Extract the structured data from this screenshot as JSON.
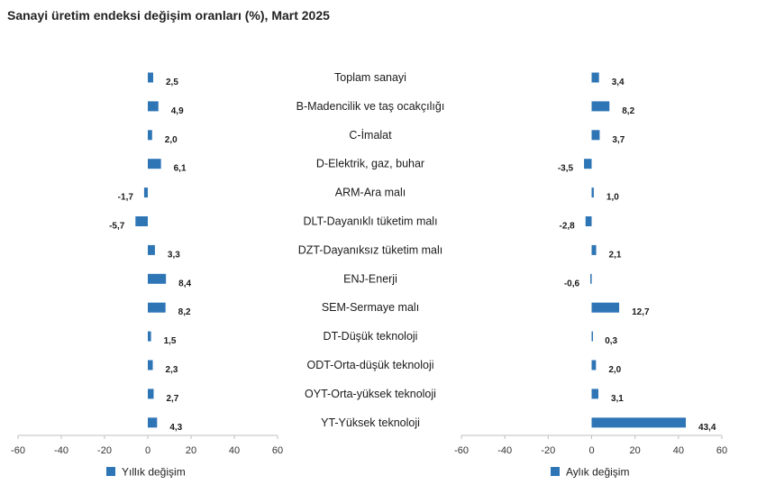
{
  "title": "Sanayi üretim endeksi değişim oranları (%), Mart 2025",
  "colors": {
    "bar": "#2e75b6",
    "axis": "#bfbfbf"
  },
  "chart_data": [
    {
      "type": "bar",
      "orientation": "horizontal",
      "categories": [
        "Toplam sanayi",
        "B-Madencilik ve taş ocakçılığı",
        "C-İmalat",
        "D-Elektrik, gaz, buhar",
        "ARM-Ara malı",
        "DLT-Dayanıklı tüketim malı",
        "DZT-Dayanıksız tüketim malı",
        "ENJ-Enerji",
        "SEM-Sermaye malı",
        "DT-Düşük teknoloji",
        "ODT-Orta-düşük teknoloji",
        "OYT-Orta-yüksek teknoloji",
        "YT-Yüksek teknoloji"
      ],
      "series": [
        {
          "name": "Yıllık değişim",
          "values": [
            2.5,
            4.9,
            2.0,
            6.1,
            -1.7,
            -5.7,
            3.3,
            8.4,
            8.2,
            1.5,
            2.3,
            2.7,
            4.3
          ]
        }
      ],
      "value_labels": [
        "2,5",
        "4,9",
        "2,0",
        "6,1",
        "-1,7",
        "-5,7",
        "3,3",
        "8,4",
        "8,2",
        "1,5",
        "2,3",
        "2,7",
        "4,3"
      ],
      "xlim": [
        -60,
        60
      ],
      "xticks": [
        "-60",
        "-40",
        "-20",
        "0",
        "20",
        "40",
        "60"
      ],
      "tick_values": [
        -60,
        -40,
        -20,
        0,
        20,
        40,
        60
      ],
      "legend": "bottom-left",
      "grid": false
    },
    {
      "type": "bar",
      "orientation": "horizontal",
      "categories": [
        "Toplam sanayi",
        "B-Madencilik ve taş ocakçılığı",
        "C-İmalat",
        "D-Elektrik, gaz, buhar",
        "ARM-Ara malı",
        "DLT-Dayanıklı tüketim malı",
        "DZT-Dayanıksız tüketim malı",
        "ENJ-Enerji",
        "SEM-Sermaye malı",
        "DT-Düşük teknoloji",
        "ODT-Orta-düşük teknoloji",
        "OYT-Orta-yüksek teknoloji",
        "YT-Yüksek teknoloji"
      ],
      "series": [
        {
          "name": "Aylık değişim",
          "values": [
            3.4,
            8.2,
            3.7,
            -3.5,
            1.0,
            -2.8,
            2.1,
            -0.6,
            12.7,
            0.3,
            2.0,
            3.1,
            43.4
          ]
        }
      ],
      "value_labels": [
        "3,4",
        "8,2",
        "3,7",
        "-3,5",
        "1,0",
        "-2,8",
        "2,1",
        "-0,6",
        "12,7",
        "0,3",
        "2,0",
        "3,1",
        "43,4"
      ],
      "xlim": [
        -60,
        60
      ],
      "xticks": [
        "-60",
        "-40",
        "-20",
        "0",
        "20",
        "40",
        "60"
      ],
      "tick_values": [
        -60,
        -40,
        -20,
        0,
        20,
        40,
        60
      ],
      "legend": "bottom-left",
      "grid": false
    }
  ]
}
